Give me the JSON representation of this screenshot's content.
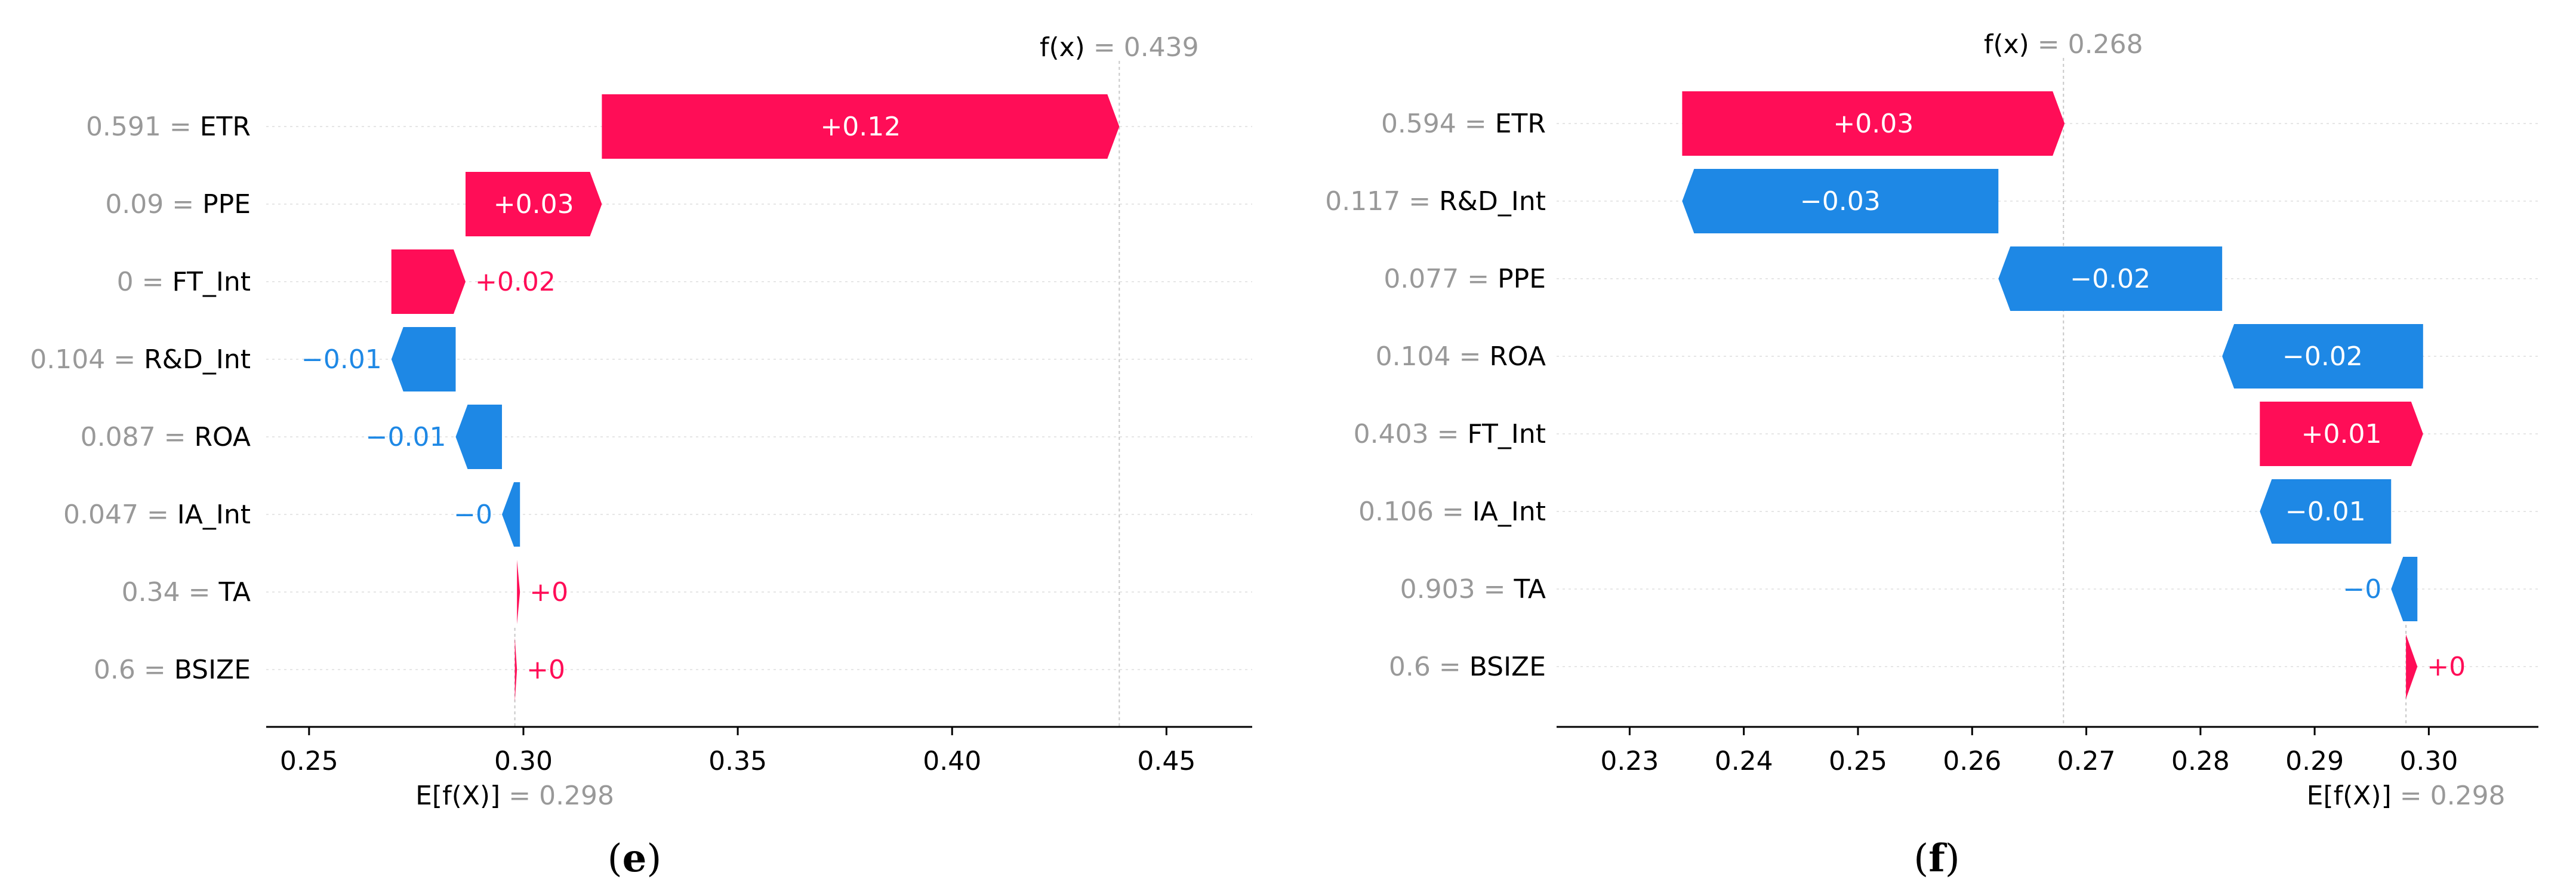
{
  "chart_data": [
    {
      "type": "waterfall",
      "panel_label": "(e)",
      "base_label": "E[f(X)]",
      "base_value": 0.298,
      "base_value_text": "= 0.298",
      "output_label": "f(x)",
      "output_value": 0.439,
      "output_value_text": "= 0.439",
      "xlim": [
        0.24,
        0.47
      ],
      "xticks": [
        0.25,
        0.3,
        0.35,
        0.4,
        0.45
      ],
      "xtick_labels": [
        "0.25",
        "0.30",
        "0.35",
        "0.40",
        "0.45"
      ],
      "features": [
        {
          "name": "ETR",
          "value": "0.591",
          "label": "+0.12",
          "start": 0.3183,
          "end": 0.439
        },
        {
          "name": "PPE",
          "value": "0.09",
          "label": "+0.03",
          "start": 0.2865,
          "end": 0.3183
        },
        {
          "name": "FT_Int",
          "value": "0",
          "label": "+0.02",
          "start": 0.2692,
          "end": 0.2865
        },
        {
          "name": "R&D_Int",
          "value": "0.104",
          "label": "−0.01",
          "start": 0.2842,
          "end": 0.2692
        },
        {
          "name": "ROA",
          "value": "0.087",
          "label": "−0.01",
          "start": 0.295,
          "end": 0.2842
        },
        {
          "name": "IA_Int",
          "value": "0.047",
          "label": "−0",
          "start": 0.2992,
          "end": 0.295
        },
        {
          "name": "TA",
          "value": "0.34",
          "label": "+0",
          "start": 0.2985,
          "end": 0.2992
        },
        {
          "name": "BSIZE",
          "value": "0.6",
          "label": "+0",
          "start": 0.298,
          "end": 0.2985
        }
      ]
    },
    {
      "type": "waterfall",
      "panel_label": "(f)",
      "base_label": "E[f(X)]",
      "base_value": 0.298,
      "base_value_text": "= 0.298",
      "output_label": "f(x)",
      "output_value": 0.268,
      "output_value_text": "= 0.268",
      "xlim": [
        0.2236,
        0.3096
      ],
      "xticks": [
        0.23,
        0.24,
        0.25,
        0.26,
        0.27,
        0.28,
        0.29,
        0.3
      ],
      "xtick_labels": [
        "0.23",
        "0.24",
        "0.25",
        "0.26",
        "0.27",
        "0.28",
        "0.29",
        "0.30"
      ],
      "features": [
        {
          "name": "ETR",
          "value": "0.594",
          "label": "+0.03",
          "start": 0.2346,
          "end": 0.2681
        },
        {
          "name": "R&D_Int",
          "value": "0.117",
          "label": "−0.03",
          "start": 0.2623,
          "end": 0.2346
        },
        {
          "name": "PPE",
          "value": "0.077",
          "label": "−0.02",
          "start": 0.2819,
          "end": 0.2623
        },
        {
          "name": "ROA",
          "value": "0.104",
          "label": "−0.02",
          "start": 0.2995,
          "end": 0.2819
        },
        {
          "name": "FT_Int",
          "value": "0.403",
          "label": "+0.01",
          "start": 0.2852,
          "end": 0.2995
        },
        {
          "name": "IA_Int",
          "value": "0.106",
          "label": "−0.01",
          "start": 0.2967,
          "end": 0.2852
        },
        {
          "name": "TA",
          "value": "0.903",
          "label": "−0",
          "start": 0.299,
          "end": 0.2967
        },
        {
          "name": "BSIZE",
          "value": "0.6",
          "label": "+0",
          "start": 0.298,
          "end": 0.299
        }
      ]
    }
  ],
  "colors": {
    "positive": "#ff0d57",
    "negative": "#1e88e5",
    "feature_value_text": "#999999",
    "feature_name_text": "#000000",
    "axis": "#000000",
    "gridline": "#e6e6e6",
    "reference_line": "#c8c8c8"
  }
}
